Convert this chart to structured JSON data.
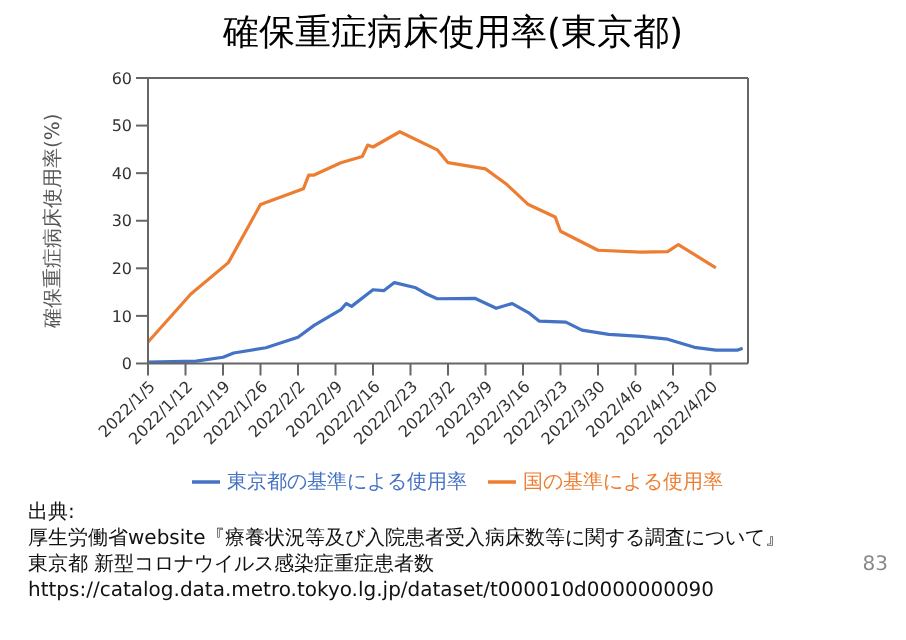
{
  "chart_data": {
    "type": "line",
    "title": "確保重症病床使用率(東京都)",
    "ylabel": "確保重症病床使用率(%)",
    "xlim": [
      "2022-01-05",
      "2022-04-27"
    ],
    "xticks": [
      {
        "value": "2022-01-05",
        "label": "2022/1/5"
      },
      {
        "value": "2022-01-12",
        "label": "2022/1/12"
      },
      {
        "value": "2022-01-19",
        "label": "2022/1/19"
      },
      {
        "value": "2022-01-26",
        "label": "2022/1/26"
      },
      {
        "value": "2022-02-02",
        "label": "2022/2/2"
      },
      {
        "value": "2022-02-09",
        "label": "2022/2/9"
      },
      {
        "value": "2022-02-16",
        "label": "2022/2/16"
      },
      {
        "value": "2022-02-23",
        "label": "2022/2/23"
      },
      {
        "value": "2022-03-02",
        "label": "2022/3/2"
      },
      {
        "value": "2022-03-09",
        "label": "2022/3/9"
      },
      {
        "value": "2022-03-16",
        "label": "2022/3/16"
      },
      {
        "value": "2022-03-23",
        "label": "2022/3/23"
      },
      {
        "value": "2022-03-30",
        "label": "2022/3/30"
      },
      {
        "value": "2022-04-06",
        "label": "2022/4/6"
      },
      {
        "value": "2022-04-13",
        "label": "2022/4/13"
      },
      {
        "value": "2022-04-20",
        "label": "2022/4/20"
      }
    ],
    "ylim": [
      0,
      60
    ],
    "yticks": [
      0,
      10,
      20,
      30,
      40,
      50,
      60
    ],
    "grid": false,
    "legend": "bottom",
    "marker": "none",
    "line_style": "solid",
    "series": [
      {
        "name": "東京都の基準による使用率",
        "color": "#4472c4",
        "x": [
          "2022-01-05",
          "2022-01-14",
          "2022-01-19",
          "2022-01-21",
          "2022-01-27",
          "2022-02-02",
          "2022-02-05",
          "2022-02-10",
          "2022-02-11",
          "2022-02-12",
          "2022-02-16",
          "2022-02-18",
          "2022-02-20",
          "2022-02-24",
          "2022-02-26",
          "2022-02-28",
          "2022-03-07",
          "2022-03-11",
          "2022-03-14",
          "2022-03-17",
          "2022-03-19",
          "2022-03-24",
          "2022-03-27",
          "2022-04-01",
          "2022-04-07",
          "2022-04-12",
          "2022-04-17",
          "2022-04-21",
          "2022-04-25",
          "2022-04-26"
        ],
        "values": [
          0.3,
          0.5,
          1.3,
          2.2,
          3.3,
          5.5,
          8.0,
          11.3,
          12.6,
          12.0,
          15.5,
          15.3,
          17.0,
          15.9,
          14.6,
          13.6,
          13.7,
          11.6,
          12.6,
          10.7,
          8.9,
          8.7,
          7.0,
          6.1,
          5.7,
          5.1,
          3.4,
          2.8,
          2.8,
          3.2
        ]
      },
      {
        "name": "国の基準による使用率",
        "color": "#ed7d31",
        "x": [
          "2022-01-05",
          "2022-01-13",
          "2022-01-20",
          "2022-01-26",
          "2022-02-03",
          "2022-02-04",
          "2022-02-05",
          "2022-02-10",
          "2022-02-14",
          "2022-02-15",
          "2022-02-16",
          "2022-02-21",
          "2022-02-28",
          "2022-03-02",
          "2022-03-09",
          "2022-03-13",
          "2022-03-17",
          "2022-03-22",
          "2022-03-23",
          "2022-03-30",
          "2022-04-07",
          "2022-04-12",
          "2022-04-14",
          "2022-04-21"
        ],
        "values": [
          4.5,
          14.6,
          21.2,
          33.4,
          36.7,
          39.6,
          39.6,
          42.2,
          43.5,
          45.9,
          45.5,
          48.7,
          44.9,
          42.2,
          40.9,
          37.6,
          33.4,
          30.8,
          27.8,
          23.8,
          23.4,
          23.5,
          25.0,
          20.1
        ]
      }
    ],
    "annotations": [
      "出典:",
      "厚生労働省website『療養状況等及び入院患者受入病床数等に関する調査について』",
      "東京都 新型コロナウイルス感染症重症患者数",
      "https://catalog.data.metro.tokyo.lg.jp/dataset/t000010d0000000090",
      "83"
    ]
  }
}
